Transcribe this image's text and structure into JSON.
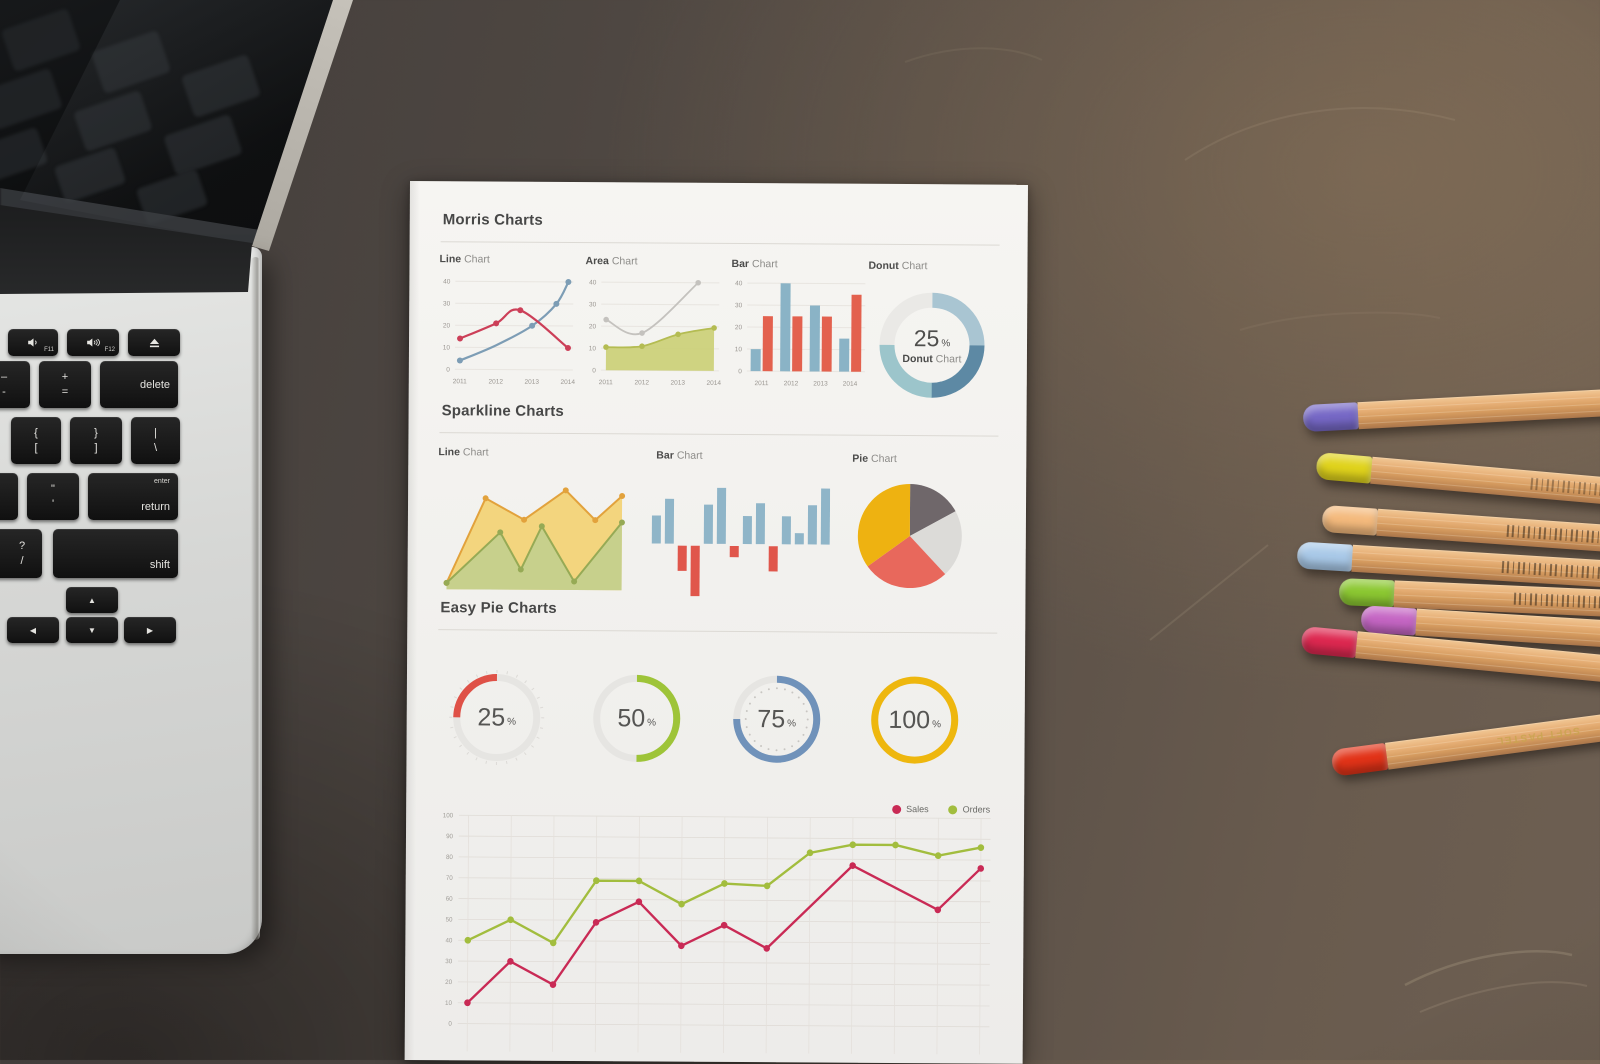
{
  "scene": {
    "description": "Flat-lay photo: laptop keyboard edge on the left, printed charts report page in the center, pastel colored pencils on the right, dark scratched desk surface",
    "desk_color": "#55493f",
    "paper_color": "#f3f2ef"
  },
  "paper": {
    "heading_morris": "Morris Charts",
    "heading_sparkline": "Sparkline Charts",
    "heading_easy_pie": "Easy Pie Charts",
    "morris_labels": [
      {
        "bold": "Line",
        "rest": "Chart"
      },
      {
        "bold": "Area",
        "rest": "Chart"
      },
      {
        "bold": "Bar",
        "rest": "Chart"
      },
      {
        "bold": "Donut",
        "rest": "Chart"
      }
    ],
    "spark_labels": [
      {
        "bold": "Line",
        "rest": "Chart"
      },
      {
        "bold": "Bar",
        "rest": "Chart"
      },
      {
        "bold": "Pie",
        "rest": "Chart"
      }
    ]
  },
  "chart_data": [
    {
      "id": "morris-line",
      "type": "line-mini",
      "title": "Line Chart",
      "x_labels": [
        "2011",
        "2012",
        "2013",
        "2014"
      ],
      "xmax": 3,
      "ylim": [
        0,
        40
      ],
      "yticks": [
        0,
        10,
        20,
        30,
        40
      ],
      "grid": true,
      "series": [
        {
          "name": "blue",
          "color": "#7d9db5",
          "points": [
            [
              0,
              4
            ],
            [
              1,
              11
            ],
            [
              2,
              20
            ],
            [
              2.67,
              30
            ],
            [
              3,
              40
            ]
          ],
          "markers": [
            [
              0,
              4
            ],
            [
              2,
              20
            ],
            [
              2.67,
              30
            ],
            [
              3,
              40
            ]
          ]
        },
        {
          "name": "red",
          "color": "#cc3f58",
          "points": [
            [
              0,
              14
            ],
            [
              1,
              21
            ],
            [
              1.67,
              27
            ],
            [
              3,
              10
            ]
          ],
          "markers": [
            [
              0,
              14
            ],
            [
              1,
              21
            ],
            [
              1.67,
              27
            ],
            [
              3,
              10
            ]
          ]
        }
      ]
    },
    {
      "id": "morris-area",
      "type": "area-mini",
      "title": "Area Chart",
      "x_labels": [
        "2011",
        "2012",
        "2013",
        "2014"
      ],
      "xmax": 3,
      "ylim": [
        0,
        40
      ],
      "yticks": [
        0,
        10,
        20,
        30,
        40
      ],
      "grid": true,
      "series": [
        {
          "name": "gray",
          "color": "#c4c2be",
          "fill": "none",
          "points": [
            [
              0,
              23
            ],
            [
              1,
              17
            ],
            [
              2.55,
              40
            ]
          ],
          "markers": [
            [
              0,
              23
            ],
            [
              1,
              17
            ],
            [
              2.55,
              40
            ]
          ]
        },
        {
          "name": "olive",
          "color": "#b4bc52",
          "fill": "#ccd17a",
          "points": [
            [
              0,
              10.5
            ],
            [
              1,
              11
            ],
            [
              2,
              16.5
            ],
            [
              3,
              19.5
            ]
          ],
          "markers": [
            [
              0,
              10.5
            ],
            [
              1,
              11
            ],
            [
              2,
              16.5
            ],
            [
              3,
              19.5
            ]
          ]
        }
      ]
    },
    {
      "id": "morris-bar",
      "type": "bar-mini",
      "title": "Bar Chart",
      "categories": [
        "2011",
        "2012",
        "2013",
        "2014"
      ],
      "ylim": [
        0,
        40
      ],
      "yticks": [
        0,
        10,
        20,
        30,
        40
      ],
      "grid": true,
      "series": [
        {
          "name": "blue",
          "color": "#8ab3c6",
          "values": [
            10,
            40,
            30,
            15
          ]
        },
        {
          "name": "red",
          "color": "#e3614e",
          "values": [
            25,
            25,
            25,
            35
          ]
        }
      ]
    },
    {
      "id": "morris-donut",
      "type": "donut",
      "title": "Donut Chart",
      "center_value": "25",
      "center_unit": "%",
      "center_label_bold": "Donut",
      "center_label_rest": "Chart",
      "slices": [
        {
          "label": "segment-top-right",
          "value": 25,
          "color": "#a9c5d2"
        },
        {
          "label": "segment-bottom-right",
          "value": 25,
          "color": "#5d89a4"
        },
        {
          "label": "segment-bottom-left",
          "value": 25,
          "color": "#9cc5cb"
        },
        {
          "label": "segment-top-left",
          "value": 25,
          "color": "#eae9e6"
        }
      ]
    },
    {
      "id": "spark-line",
      "type": "sparkline-area",
      "title": "Line Chart",
      "xlim": [
        0,
        6
      ],
      "ylim": [
        0,
        10
      ],
      "series": [
        {
          "name": "orange",
          "line_color": "#e2a23c",
          "fill_color": "#f2d377",
          "fill_opacity": 0.95,
          "points": [
            [
              0,
              0.6
            ],
            [
              1.3,
              8.6
            ],
            [
              2.6,
              6.6
            ],
            [
              4.0,
              9.4
            ],
            [
              5.0,
              6.6
            ],
            [
              5.9,
              8.9
            ]
          ]
        },
        {
          "name": "green",
          "line_color": "#96aa55",
          "fill_color": "#c2cf8e",
          "fill_opacity": 0.9,
          "points": [
            [
              0,
              0.6
            ],
            [
              1.8,
              5.4
            ],
            [
              2.5,
              1.9
            ],
            [
              3.2,
              6.0
            ],
            [
              4.3,
              0.8
            ],
            [
              5.9,
              6.4
            ]
          ]
        }
      ]
    },
    {
      "id": "spark-bar",
      "type": "winloss-bar",
      "title": "Bar Chart",
      "positive_color": "#8fb5c8",
      "negative_color": "#e0564b",
      "values": [
        5,
        8,
        -4.5,
        -9,
        7,
        10,
        -2,
        5,
        7.3,
        -4.5,
        5,
        2,
        7,
        10
      ]
    },
    {
      "id": "spark-pie",
      "type": "pie",
      "title": "Pie Chart",
      "slices": [
        {
          "label": "slice-dark-gray",
          "value": 17,
          "color": "#6f676a"
        },
        {
          "label": "slice-light-gray",
          "value": 21,
          "color": "#dcdbd8"
        },
        {
          "label": "slice-red",
          "value": 27,
          "color": "#e8685c"
        },
        {
          "label": "slice-yellow",
          "value": 35,
          "color": "#eeb211"
        }
      ]
    },
    {
      "id": "easy-pie",
      "type": "progress-rings",
      "title": "Easy Pie Charts",
      "track_color": "#e6e5e2",
      "rings": [
        {
          "value": "25",
          "unit": "%",
          "color": "#df5147",
          "direction": "ccw",
          "ticks": "outer"
        },
        {
          "value": "50",
          "unit": "%",
          "color": "#9ec438",
          "direction": "cw",
          "ticks": "none"
        },
        {
          "value": "75",
          "unit": "%",
          "color": "#7092ba",
          "direction": "cw",
          "ticks": "inner-dots"
        },
        {
          "value": "100",
          "unit": "%",
          "color": "#eeb70e",
          "direction": "cw",
          "ticks": "none"
        }
      ]
    },
    {
      "id": "sales-orders",
      "type": "line-grid",
      "ylim": [
        0,
        100
      ],
      "yticks": [
        0,
        10,
        20,
        30,
        40,
        50,
        60,
        70,
        80,
        90,
        100
      ],
      "x_count": 13,
      "grid": true,
      "legend_position": "top-right",
      "legend": [
        {
          "label": "Sales",
          "color": "#c92a55"
        },
        {
          "label": "Orders",
          "color": "#a2bd3e"
        }
      ],
      "series": [
        {
          "name": "Sales",
          "color": "#c92a55",
          "values": [
            10,
            30,
            19,
            49,
            59,
            38,
            48,
            37,
            null,
            77,
            null,
            56,
            76
          ]
        },
        {
          "name": "Orders",
          "color": "#a2bd3e",
          "values": [
            40,
            50,
            39,
            69,
            69,
            58,
            68,
            67,
            83,
            87,
            87,
            82,
            86
          ]
        }
      ]
    }
  ],
  "laptop": {
    "keys": {
      "f11": {
        "fn": "F11",
        "icon": "speaker-low-icon"
      },
      "f12": {
        "fn": "F12",
        "icon": "speaker-high-icon"
      },
      "eject": {
        "icon": "eject-icon"
      },
      "minus": {
        "top": "–",
        "bottom": "-"
      },
      "plus": {
        "top": "+",
        "bottom": "="
      },
      "delete": {
        "label": "delete"
      },
      "bracket_open": {
        "top": "{",
        "bottom": "["
      },
      "bracket_close": {
        "top": "}",
        "bottom": "]"
      },
      "backslash": {
        "top": "|",
        "bottom": "\\"
      },
      "quote": {
        "top": "\"",
        "bottom": "'"
      },
      "return_key": {
        "small": "enter",
        "label": "return"
      },
      "question": {
        "top": "?",
        "bottom": "/"
      },
      "shift": {
        "label": "shift"
      },
      "arrow_up": {
        "label": "▲"
      },
      "arrow_down": {
        "label": "▼"
      },
      "arrow_left": {
        "label": "◀"
      },
      "arrow_right": {
        "label": "▶"
      }
    }
  },
  "pencils": {
    "brand_text": "SOFT PASTEL",
    "items": [
      {
        "name": "purple",
        "cap_color": "#7668c6"
      },
      {
        "name": "yellow",
        "cap_color": "#e0d31c"
      },
      {
        "name": "peach",
        "cap_color": "#f4ba7d"
      },
      {
        "name": "light-blue",
        "cap_color": "#a9c9e8"
      },
      {
        "name": "green",
        "cap_color": "#8cc832"
      },
      {
        "name": "orchid",
        "cap_color": "#c566c4"
      },
      {
        "name": "red",
        "cap_color": "#dd2850"
      },
      {
        "name": "scarlet",
        "cap_color": "#e23318"
      }
    ]
  }
}
